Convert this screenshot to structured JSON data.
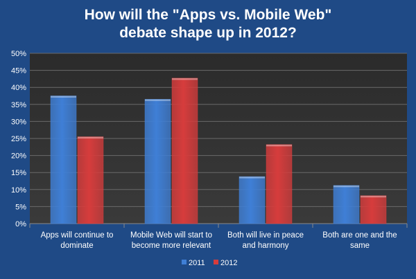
{
  "chart_data": {
    "type": "bar",
    "title": "How will the \"Apps vs. Mobile Web\" debate shape up in 2012?",
    "title_lines": [
      "How will the \"Apps vs. Mobile Web\"",
      "debate shape up in 2012?"
    ],
    "categories": [
      "Apps will continue to dominate",
      "Mobile Web will start to become more relevant",
      "Both will live in peace and harmony",
      "Both are one and the same"
    ],
    "category_lines": [
      [
        "Apps will continue to",
        "dominate"
      ],
      [
        "Mobile Web will start to",
        "become more relevant"
      ],
      [
        "Both will live in peace",
        "and harmony"
      ],
      [
        "Both are one and the",
        "same"
      ]
    ],
    "series": [
      {
        "name": "2011",
        "color": "#3f7fd6",
        "values": [
          37.5,
          36.5,
          13.8,
          11.2
        ]
      },
      {
        "name": "2012",
        "color": "#d63c3c",
        "values": [
          25.5,
          42.7,
          23.2,
          8.2
        ]
      }
    ],
    "ylim": [
      0,
      50
    ],
    "yticks": [
      "0%",
      "5%",
      "10%",
      "15%",
      "20%",
      "25%",
      "30%",
      "35%",
      "40%",
      "45%",
      "50%"
    ],
    "grid": true,
    "legend_position": "bottom",
    "plot_background": "#333333",
    "gridline_color": "#6a6a6a"
  }
}
